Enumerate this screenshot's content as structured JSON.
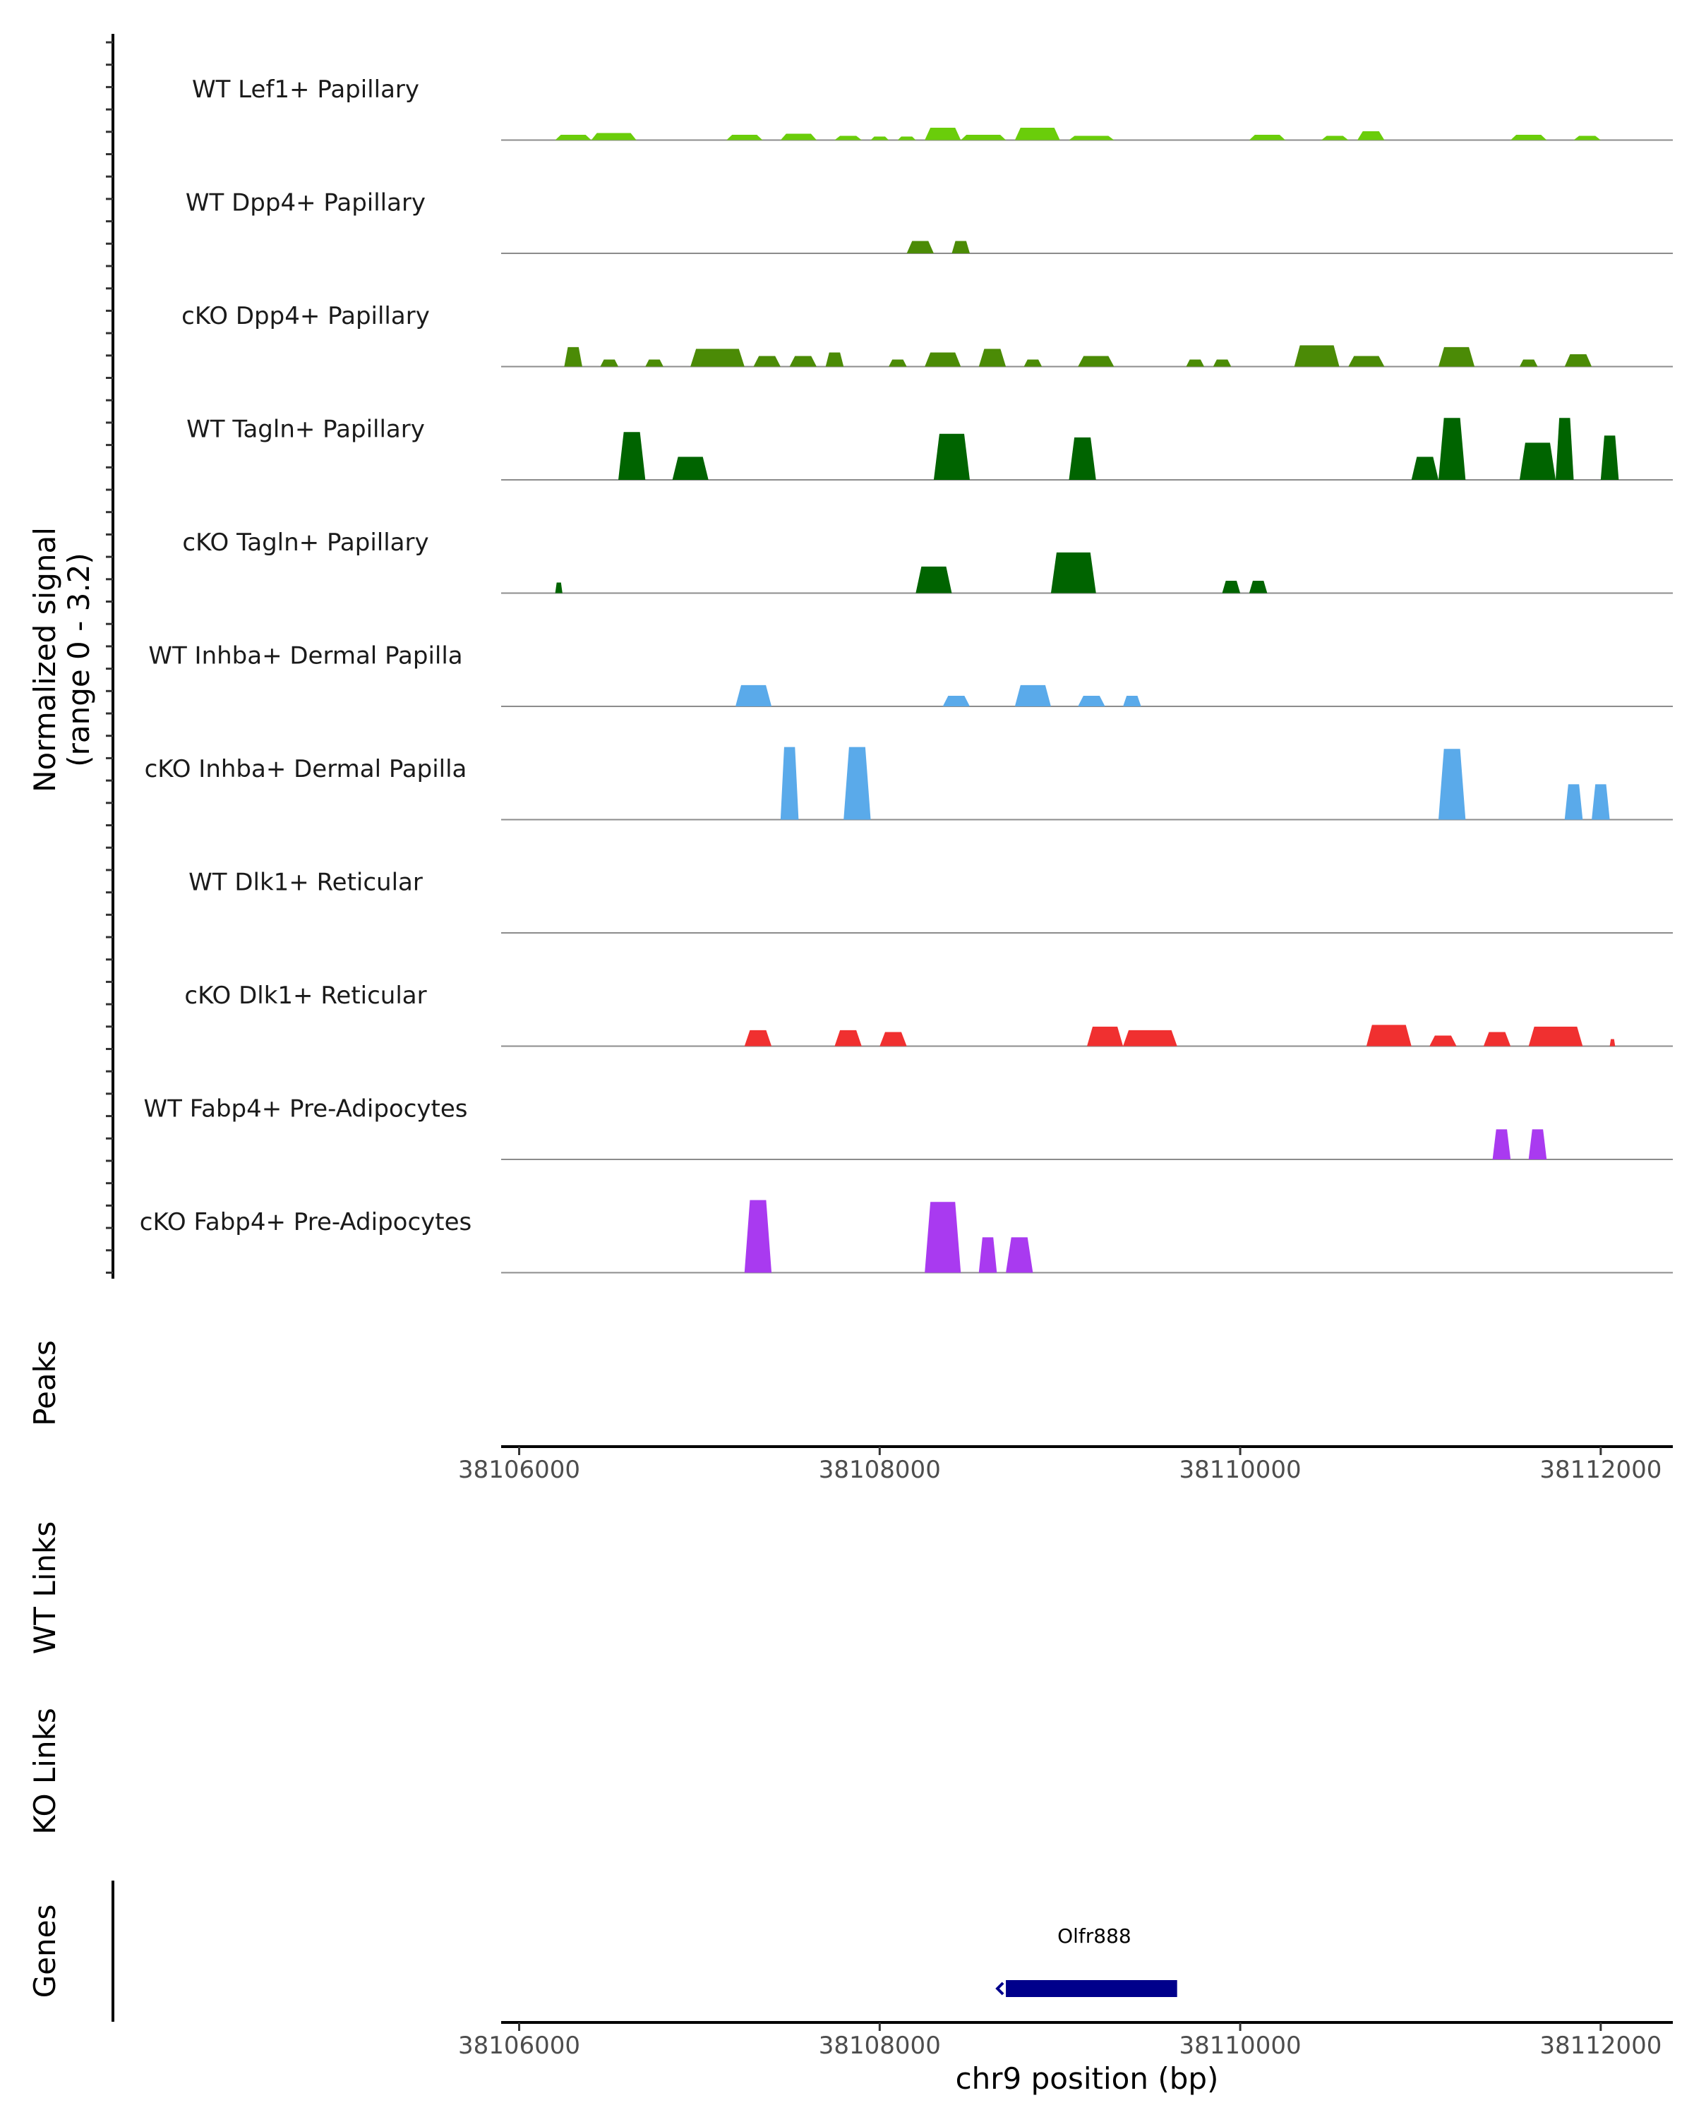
{
  "chart_data": {
    "type": "area",
    "title": "",
    "xlabel": "chr9 position (bp)",
    "ylabel": "Normalized signal (range 0 - 3.2)",
    "ylabel_lines": [
      "Normalized signal",
      "(range 0 - 3.2)"
    ],
    "xlim": [
      38105900,
      38112400
    ],
    "ylim": [
      0,
      3.2
    ],
    "x_ticks": [
      38106000,
      38108000,
      38110000,
      38112000
    ],
    "x_tick_labels": [
      "38106000",
      "38108000",
      "38110000",
      "38112000"
    ],
    "series": [
      {
        "name": "WT Lef1+ Papillary",
        "color": "#6acd0a",
        "peaks": [
          [
            38106200,
            38106400,
            0.15
          ],
          [
            38106400,
            38106650,
            0.2
          ],
          [
            38107150,
            38107350,
            0.15
          ],
          [
            38107450,
            38107650,
            0.18
          ],
          [
            38107750,
            38107900,
            0.12
          ],
          [
            38107950,
            38108050,
            0.1
          ],
          [
            38108100,
            38108200,
            0.1
          ],
          [
            38108250,
            38108450,
            0.35
          ],
          [
            38108450,
            38108700,
            0.15
          ],
          [
            38108750,
            38109000,
            0.35
          ],
          [
            38109050,
            38109300,
            0.12
          ],
          [
            38110050,
            38110250,
            0.15
          ],
          [
            38110450,
            38110600,
            0.12
          ],
          [
            38110650,
            38110800,
            0.25
          ],
          [
            38111500,
            38111700,
            0.15
          ],
          [
            38111850,
            38112000,
            0.12
          ]
        ]
      },
      {
        "name": "WT Dpp4+ Papillary",
        "color": "#4b8b06",
        "peaks": [
          [
            38108150,
            38108300,
            0.35
          ],
          [
            38108400,
            38108500,
            0.35
          ]
        ]
      },
      {
        "name": "cKO Dpp4+ Papillary",
        "color": "#4b8b06",
        "peaks": [
          [
            38106250,
            38106350,
            0.55
          ],
          [
            38106450,
            38106550,
            0.2
          ],
          [
            38106700,
            38106800,
            0.2
          ],
          [
            38106950,
            38107250,
            0.5
          ],
          [
            38107300,
            38107450,
            0.3
          ],
          [
            38107500,
            38107650,
            0.3
          ],
          [
            38107700,
            38107800,
            0.4
          ],
          [
            38108050,
            38108150,
            0.2
          ],
          [
            38108250,
            38108450,
            0.4
          ],
          [
            38108550,
            38108700,
            0.5
          ],
          [
            38108800,
            38108900,
            0.2
          ],
          [
            38109100,
            38109300,
            0.3
          ],
          [
            38109700,
            38109800,
            0.2
          ],
          [
            38109850,
            38109950,
            0.2
          ],
          [
            38110300,
            38110550,
            0.6
          ],
          [
            38110600,
            38110800,
            0.3
          ],
          [
            38111100,
            38111300,
            0.55
          ],
          [
            38111550,
            38111650,
            0.2
          ],
          [
            38111800,
            38111950,
            0.35
          ]
        ]
      },
      {
        "name": "WT Tagln+ Papillary",
        "color": "#006400",
        "peaks": [
          [
            38106550,
            38106700,
            1.35
          ],
          [
            38106850,
            38107050,
            0.65
          ],
          [
            38108300,
            38108500,
            1.3
          ],
          [
            38109050,
            38109200,
            1.2
          ],
          [
            38110950,
            38111100,
            0.65
          ],
          [
            38111100,
            38111250,
            1.75
          ],
          [
            38111550,
            38111750,
            1.05
          ],
          [
            38111750,
            38111850,
            1.75
          ],
          [
            38112000,
            38112100,
            1.25
          ]
        ]
      },
      {
        "name": "cKO Tagln+ Papillary",
        "color": "#006400",
        "peaks": [
          [
            38106200,
            38106240,
            0.3
          ],
          [
            38108200,
            38108400,
            0.75
          ],
          [
            38108950,
            38109200,
            1.15
          ],
          [
            38109900,
            38110000,
            0.35
          ],
          [
            38110050,
            38110150,
            0.35
          ]
        ]
      },
      {
        "name": "WT Inhba+ Dermal Papilla",
        "color": "#5aaaea",
        "peaks": [
          [
            38107200,
            38107400,
            0.6
          ],
          [
            38108350,
            38108500,
            0.3
          ],
          [
            38108750,
            38108950,
            0.6
          ],
          [
            38109100,
            38109250,
            0.3
          ],
          [
            38109350,
            38109450,
            0.3
          ]
        ]
      },
      {
        "name": "cKO Inhba+ Dermal Papilla",
        "color": "#5aaaea",
        "peaks": [
          [
            38107450,
            38107550,
            2.05
          ],
          [
            38107800,
            38107950,
            2.05
          ],
          [
            38111100,
            38111250,
            2.0
          ],
          [
            38111800,
            38111900,
            1.0
          ],
          [
            38111950,
            38112050,
            1.0
          ]
        ]
      },
      {
        "name": "WT Dlk1+ Reticular",
        "color": "#e23a3a",
        "peaks": []
      },
      {
        "name": "cKO Dlk1+ Reticular",
        "color": "#f03030",
        "peaks": [
          [
            38107250,
            38107400,
            0.45
          ],
          [
            38107750,
            38107900,
            0.45
          ],
          [
            38108000,
            38108150,
            0.4
          ],
          [
            38109150,
            38109350,
            0.55
          ],
          [
            38109350,
            38109650,
            0.45
          ],
          [
            38110700,
            38110950,
            0.6
          ],
          [
            38111050,
            38111200,
            0.3
          ],
          [
            38111350,
            38111500,
            0.4
          ],
          [
            38111600,
            38111900,
            0.55
          ],
          [
            38112050,
            38112080,
            0.2
          ]
        ]
      },
      {
        "name": "WT Fabp4+ Pre-Adipocytes",
        "color": "#a93af0",
        "peaks": [
          [
            38111400,
            38111500,
            0.85
          ],
          [
            38111600,
            38111700,
            0.85
          ]
        ]
      },
      {
        "name": "cKO Fabp4+ Pre-Adipocytes",
        "color": "#a93af0",
        "peaks": [
          [
            38107250,
            38107400,
            2.05
          ],
          [
            38108250,
            38108450,
            2.0
          ],
          [
            38108550,
            38108650,
            1.0
          ],
          [
            38108700,
            38108850,
            1.0
          ]
        ]
      }
    ],
    "panels": [
      "Peaks",
      "WT Links",
      "KO Links",
      "Genes"
    ],
    "genes": [
      {
        "name": "Olfr888",
        "start": 38108700,
        "end": 38109650,
        "strand": "-",
        "color": "#00008b"
      }
    ]
  }
}
